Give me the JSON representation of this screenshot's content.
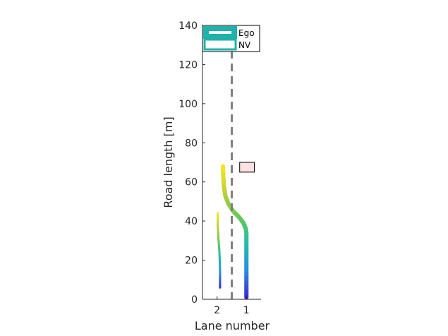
{
  "chart_data": {
    "type": "line",
    "title": "",
    "xlabel": "Lane number",
    "ylabel": "Road length [m]",
    "x_categories": [
      "2",
      "1"
    ],
    "x_lane_values": [
      2,
      1
    ],
    "xlim": [
      2.5,
      0.5
    ],
    "ylim": [
      0,
      140
    ],
    "yticks": [
      0,
      20,
      40,
      60,
      80,
      100,
      120,
      140
    ],
    "ytick_labels": [
      "0",
      "20",
      "40",
      "60",
      "80",
      "100",
      "120",
      "140"
    ],
    "grid": false,
    "lane_divider": {
      "lane": 1.5,
      "style": "dashed",
      "color": "#808080"
    },
    "legend": {
      "location": "top",
      "entries": [
        {
          "label": "Ego",
          "color": "#20b2aa",
          "style": "filled"
        },
        {
          "label": "NV",
          "color": "#20b2aa",
          "style": "outline"
        }
      ]
    },
    "colormap": [
      "#3b2bd6",
      "#2a8ee0",
      "#1fbcb0",
      "#5ec95a",
      "#b8cf3a",
      "#f7e61e"
    ],
    "series": [
      {
        "label_ref": "Ego",
        "width": "thick",
        "points": [
          [
            1.0,
            1
          ],
          [
            1.0,
            20
          ],
          [
            1.0,
            34
          ],
          [
            1.02,
            36
          ],
          [
            1.1,
            39
          ],
          [
            1.25,
            42
          ],
          [
            1.45,
            45
          ],
          [
            1.62,
            49
          ],
          [
            1.72,
            53
          ],
          [
            1.77,
            58
          ],
          [
            1.79,
            63
          ],
          [
            1.8,
            68
          ]
        ]
      },
      {
        "label_ref": "NV",
        "width": "thin",
        "points": [
          [
            1.9,
            6
          ],
          [
            1.9,
            15
          ],
          [
            1.92,
            24
          ],
          [
            1.95,
            30
          ],
          [
            1.97,
            35
          ],
          [
            1.98,
            39
          ],
          [
            1.98,
            44
          ]
        ]
      }
    ],
    "obstacle": {
      "lane": 0.98,
      "y_center": 67.5,
      "lane_width": 0.5,
      "height": 5,
      "fill": "#fde0e0"
    }
  }
}
